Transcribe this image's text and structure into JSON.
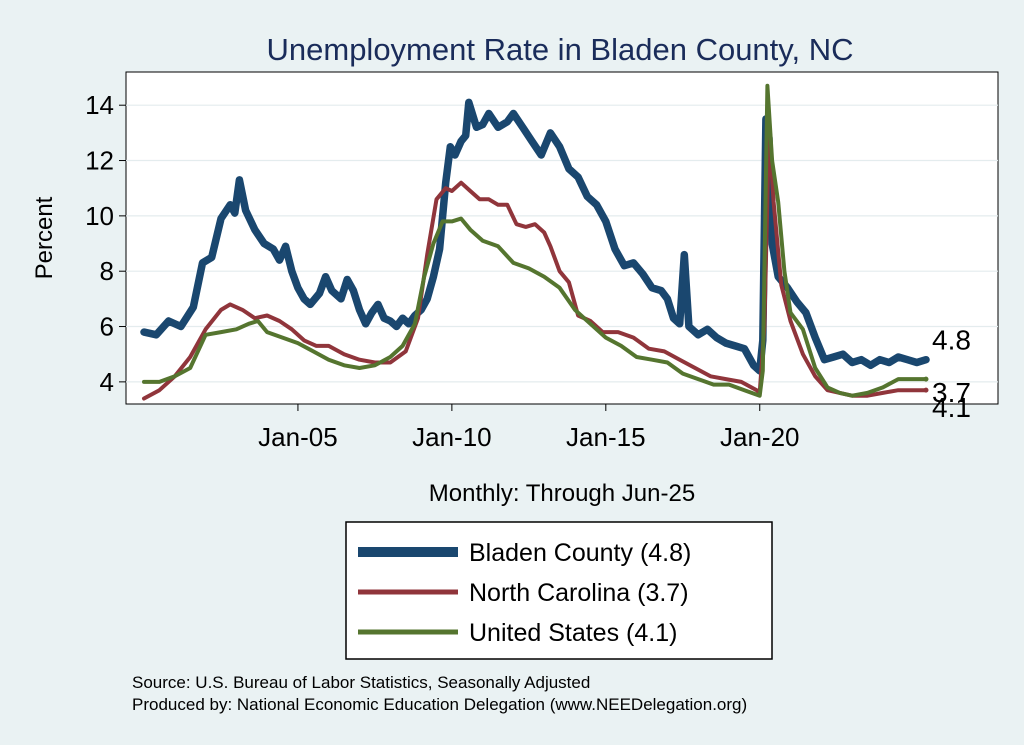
{
  "chart_data": {
    "type": "line",
    "title": "Unemployment Rate in Bladen  County, NC",
    "xlabel": "Monthly: Through Jun-25",
    "ylabel": "Percent",
    "x_range": [
      2000.0,
      2025.4
    ],
    "ylim": [
      3.2,
      15.2
    ],
    "y_ticks": [
      4,
      6,
      8,
      10,
      12,
      14
    ],
    "x_ticks": [
      {
        "label": "Jan-05",
        "value": 2005.0
      },
      {
        "label": "Jan-10",
        "value": 2010.0
      },
      {
        "label": "Jan-15",
        "value": 2015.0
      },
      {
        "label": "Jan-20",
        "value": 2020.0
      }
    ],
    "grid": true,
    "series": [
      {
        "name": "Bladen  County",
        "legend_label": "Bladen  County (4.8)",
        "end_label": "4.8",
        "color": "#1a476f",
        "points": [
          [
            2000.0,
            5.8
          ],
          [
            2000.4,
            5.7
          ],
          [
            2000.8,
            6.2
          ],
          [
            2001.2,
            6.0
          ],
          [
            2001.6,
            6.7
          ],
          [
            2001.9,
            8.3
          ],
          [
            2002.2,
            8.5
          ],
          [
            2002.5,
            9.9
          ],
          [
            2002.8,
            10.4
          ],
          [
            2002.95,
            10.1
          ],
          [
            2003.1,
            11.3
          ],
          [
            2003.3,
            10.2
          ],
          [
            2003.6,
            9.5
          ],
          [
            2003.9,
            9.0
          ],
          [
            2004.2,
            8.8
          ],
          [
            2004.4,
            8.4
          ],
          [
            2004.6,
            8.9
          ],
          [
            2004.8,
            8.0
          ],
          [
            2005.0,
            7.4
          ],
          [
            2005.2,
            7.0
          ],
          [
            2005.4,
            6.8
          ],
          [
            2005.7,
            7.2
          ],
          [
            2005.9,
            7.8
          ],
          [
            2006.1,
            7.3
          ],
          [
            2006.4,
            7.0
          ],
          [
            2006.6,
            7.7
          ],
          [
            2006.8,
            7.3
          ],
          [
            2007.0,
            6.6
          ],
          [
            2007.2,
            6.1
          ],
          [
            2007.4,
            6.5
          ],
          [
            2007.6,
            6.8
          ],
          [
            2007.8,
            6.3
          ],
          [
            2008.0,
            6.2
          ],
          [
            2008.2,
            6.0
          ],
          [
            2008.4,
            6.3
          ],
          [
            2008.6,
            6.1
          ],
          [
            2008.8,
            6.4
          ],
          [
            2009.0,
            6.6
          ],
          [
            2009.2,
            7.0
          ],
          [
            2009.4,
            7.8
          ],
          [
            2009.6,
            8.8
          ],
          [
            2009.8,
            11.2
          ],
          [
            2009.95,
            12.5
          ],
          [
            2010.1,
            12.2
          ],
          [
            2010.3,
            12.7
          ],
          [
            2010.45,
            12.9
          ],
          [
            2010.55,
            14.1
          ],
          [
            2010.8,
            13.2
          ],
          [
            2011.0,
            13.3
          ],
          [
            2011.2,
            13.7
          ],
          [
            2011.5,
            13.2
          ],
          [
            2011.8,
            13.4
          ],
          [
            2012.0,
            13.7
          ],
          [
            2012.3,
            13.2
          ],
          [
            2012.6,
            12.7
          ],
          [
            2012.9,
            12.2
          ],
          [
            2013.2,
            13.0
          ],
          [
            2013.5,
            12.5
          ],
          [
            2013.8,
            11.7
          ],
          [
            2014.1,
            11.4
          ],
          [
            2014.4,
            10.7
          ],
          [
            2014.7,
            10.4
          ],
          [
            2015.0,
            9.8
          ],
          [
            2015.3,
            8.8
          ],
          [
            2015.6,
            8.2
          ],
          [
            2015.9,
            8.3
          ],
          [
            2016.2,
            7.9
          ],
          [
            2016.5,
            7.4
          ],
          [
            2016.8,
            7.3
          ],
          [
            2017.0,
            7.0
          ],
          [
            2017.2,
            6.3
          ],
          [
            2017.4,
            6.1
          ],
          [
            2017.55,
            8.6
          ],
          [
            2017.7,
            6.0
          ],
          [
            2018.0,
            5.7
          ],
          [
            2018.3,
            5.9
          ],
          [
            2018.6,
            5.6
          ],
          [
            2018.9,
            5.4
          ],
          [
            2019.2,
            5.3
          ],
          [
            2019.5,
            5.2
          ],
          [
            2019.8,
            4.6
          ],
          [
            2020.0,
            4.4
          ],
          [
            2020.1,
            5.5
          ],
          [
            2020.2,
            13.5
          ],
          [
            2020.3,
            12.8
          ],
          [
            2020.4,
            9.0
          ],
          [
            2020.6,
            7.8
          ],
          [
            2020.9,
            7.4
          ],
          [
            2021.2,
            6.9
          ],
          [
            2021.5,
            6.5
          ],
          [
            2021.8,
            5.6
          ],
          [
            2022.1,
            4.8
          ],
          [
            2022.4,
            4.9
          ],
          [
            2022.7,
            5.0
          ],
          [
            2023.0,
            4.7
          ],
          [
            2023.3,
            4.8
          ],
          [
            2023.6,
            4.6
          ],
          [
            2023.9,
            4.8
          ],
          [
            2024.2,
            4.7
          ],
          [
            2024.5,
            4.9
          ],
          [
            2024.8,
            4.8
          ],
          [
            2025.1,
            4.7
          ],
          [
            2025.4,
            4.8
          ]
        ]
      },
      {
        "name": "North Carolina",
        "legend_label": "North Carolina (3.7)",
        "end_label": "3.7",
        "color": "#90353b",
        "points": [
          [
            2000.0,
            3.4
          ],
          [
            2000.5,
            3.7
          ],
          [
            2001.0,
            4.2
          ],
          [
            2001.5,
            4.9
          ],
          [
            2002.0,
            5.9
          ],
          [
            2002.5,
            6.6
          ],
          [
            2002.8,
            6.8
          ],
          [
            2003.2,
            6.6
          ],
          [
            2003.6,
            6.3
          ],
          [
            2004.0,
            6.4
          ],
          [
            2004.4,
            6.2
          ],
          [
            2004.8,
            5.9
          ],
          [
            2005.2,
            5.5
          ],
          [
            2005.6,
            5.3
          ],
          [
            2006.0,
            5.3
          ],
          [
            2006.5,
            5.0
          ],
          [
            2007.0,
            4.8
          ],
          [
            2007.5,
            4.7
          ],
          [
            2008.0,
            4.7
          ],
          [
            2008.5,
            5.1
          ],
          [
            2008.9,
            6.3
          ],
          [
            2009.2,
            8.6
          ],
          [
            2009.5,
            10.6
          ],
          [
            2009.8,
            11.0
          ],
          [
            2010.0,
            10.9
          ],
          [
            2010.3,
            11.2
          ],
          [
            2010.6,
            10.9
          ],
          [
            2010.9,
            10.6
          ],
          [
            2011.2,
            10.6
          ],
          [
            2011.5,
            10.4
          ],
          [
            2011.8,
            10.4
          ],
          [
            2012.1,
            9.7
          ],
          [
            2012.4,
            9.6
          ],
          [
            2012.7,
            9.7
          ],
          [
            2013.0,
            9.4
          ],
          [
            2013.2,
            8.9
          ],
          [
            2013.5,
            8.0
          ],
          [
            2013.8,
            7.6
          ],
          [
            2014.1,
            6.4
          ],
          [
            2014.5,
            6.2
          ],
          [
            2014.9,
            5.8
          ],
          [
            2015.4,
            5.8
          ],
          [
            2015.9,
            5.6
          ],
          [
            2016.4,
            5.2
          ],
          [
            2016.9,
            5.1
          ],
          [
            2017.4,
            4.8
          ],
          [
            2017.9,
            4.5
          ],
          [
            2018.4,
            4.2
          ],
          [
            2018.9,
            4.1
          ],
          [
            2019.4,
            4.0
          ],
          [
            2019.9,
            3.7
          ],
          [
            2020.0,
            3.6
          ],
          [
            2020.15,
            6.0
          ],
          [
            2020.3,
            13.1
          ],
          [
            2020.45,
            10.5
          ],
          [
            2020.7,
            7.5
          ],
          [
            2021.0,
            6.2
          ],
          [
            2021.4,
            5.0
          ],
          [
            2021.8,
            4.2
          ],
          [
            2022.2,
            3.7
          ],
          [
            2022.6,
            3.6
          ],
          [
            2023.0,
            3.5
          ],
          [
            2023.5,
            3.5
          ],
          [
            2024.0,
            3.6
          ],
          [
            2024.5,
            3.7
          ],
          [
            2025.0,
            3.7
          ],
          [
            2025.4,
            3.7
          ]
        ]
      },
      {
        "name": "United States",
        "legend_label": "United States (4.1)",
        "end_label": "4.1",
        "color": "#55752f",
        "points": [
          [
            2000.0,
            4.0
          ],
          [
            2000.5,
            4.0
          ],
          [
            2001.0,
            4.2
          ],
          [
            2001.5,
            4.5
          ],
          [
            2002.0,
            5.7
          ],
          [
            2002.5,
            5.8
          ],
          [
            2003.0,
            5.9
          ],
          [
            2003.4,
            6.1
          ],
          [
            2003.7,
            6.2
          ],
          [
            2004.0,
            5.8
          ],
          [
            2004.5,
            5.6
          ],
          [
            2005.0,
            5.4
          ],
          [
            2005.5,
            5.1
          ],
          [
            2006.0,
            4.8
          ],
          [
            2006.5,
            4.6
          ],
          [
            2007.0,
            4.5
          ],
          [
            2007.5,
            4.6
          ],
          [
            2008.0,
            4.9
          ],
          [
            2008.4,
            5.3
          ],
          [
            2008.8,
            6.1
          ],
          [
            2009.1,
            7.8
          ],
          [
            2009.4,
            9.0
          ],
          [
            2009.7,
            9.8
          ],
          [
            2010.0,
            9.8
          ],
          [
            2010.3,
            9.9
          ],
          [
            2010.6,
            9.5
          ],
          [
            2011.0,
            9.1
          ],
          [
            2011.5,
            8.9
          ],
          [
            2012.0,
            8.3
          ],
          [
            2012.5,
            8.1
          ],
          [
            2013.0,
            7.8
          ],
          [
            2013.5,
            7.4
          ],
          [
            2014.0,
            6.6
          ],
          [
            2014.5,
            6.1
          ],
          [
            2015.0,
            5.6
          ],
          [
            2015.5,
            5.3
          ],
          [
            2016.0,
            4.9
          ],
          [
            2016.5,
            4.8
          ],
          [
            2017.0,
            4.7
          ],
          [
            2017.5,
            4.3
          ],
          [
            2018.0,
            4.1
          ],
          [
            2018.5,
            3.9
          ],
          [
            2019.0,
            3.9
          ],
          [
            2019.5,
            3.7
          ],
          [
            2020.0,
            3.5
          ],
          [
            2020.1,
            4.4
          ],
          [
            2020.25,
            14.7
          ],
          [
            2020.4,
            12.0
          ],
          [
            2020.6,
            10.5
          ],
          [
            2020.8,
            8.0
          ],
          [
            2021.0,
            6.5
          ],
          [
            2021.4,
            5.9
          ],
          [
            2021.8,
            4.5
          ],
          [
            2022.2,
            3.8
          ],
          [
            2022.6,
            3.6
          ],
          [
            2023.0,
            3.5
          ],
          [
            2023.5,
            3.6
          ],
          [
            2024.0,
            3.8
          ],
          [
            2024.5,
            4.1
          ],
          [
            2025.0,
            4.1
          ],
          [
            2025.4,
            4.1
          ]
        ]
      }
    ]
  },
  "source_line": "Source: U.S. Bureau of Labor Statistics, Seasonally Adjusted",
  "produced_line": "Produced by: National Economic Education Delegation (www.NEEDelegation.org)"
}
